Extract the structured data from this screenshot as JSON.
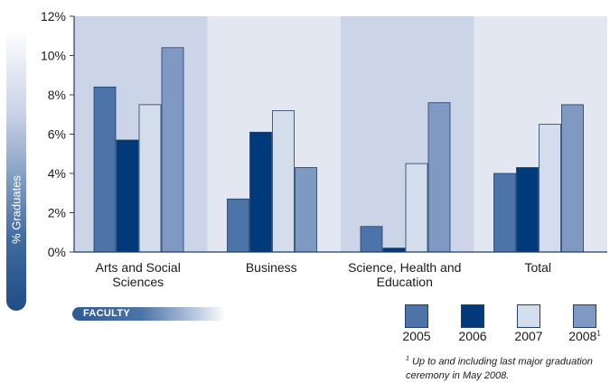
{
  "chart_data": {
    "type": "bar",
    "title": "",
    "xlabel": "FACULTY",
    "ylabel": "% Graduates",
    "ylim": [
      0,
      12
    ],
    "yticks": [
      "0%",
      "2%",
      "4%",
      "6%",
      "8%",
      "10%",
      "12%"
    ],
    "ytick_values": [
      0,
      2,
      4,
      6,
      8,
      10,
      12
    ],
    "categories": [
      "Arts and Social\nSciences",
      "Business",
      "Science, Health and\nEducation",
      "Total"
    ],
    "series": [
      {
        "name": "2005",
        "color": "#4d74a8",
        "values": [
          8.4,
          2.7,
          1.3,
          4.0
        ]
      },
      {
        "name": "2006",
        "color": "#003a7a",
        "values": [
          5.7,
          6.1,
          0.2,
          4.3
        ]
      },
      {
        "name": "2007",
        "color": "#d3ddec",
        "values": [
          7.5,
          7.2,
          4.5,
          6.5
        ]
      },
      {
        "name": "2008",
        "color": "#7f99c3",
        "values": [
          10.4,
          4.3,
          7.6,
          7.5
        ]
      }
    ],
    "legend_position": "bottom-right",
    "grid": false
  },
  "legend": {
    "items": [
      {
        "label": "2005",
        "sup": "",
        "color": "#4d74a8"
      },
      {
        "label": "2006",
        "sup": "",
        "color": "#003a7a"
      },
      {
        "label": "2007",
        "sup": "",
        "color": "#d3ddec"
      },
      {
        "label": "2008",
        "sup": "1",
        "color": "#7f99c3"
      }
    ]
  },
  "footnote": {
    "marker": "1",
    "text": "Up to and including last major graduation ceremony in May 2008."
  },
  "colors": {
    "band_dark": "#ccd5e8",
    "band_light": "#e2e7f1",
    "axis": "#1f3f6a"
  }
}
